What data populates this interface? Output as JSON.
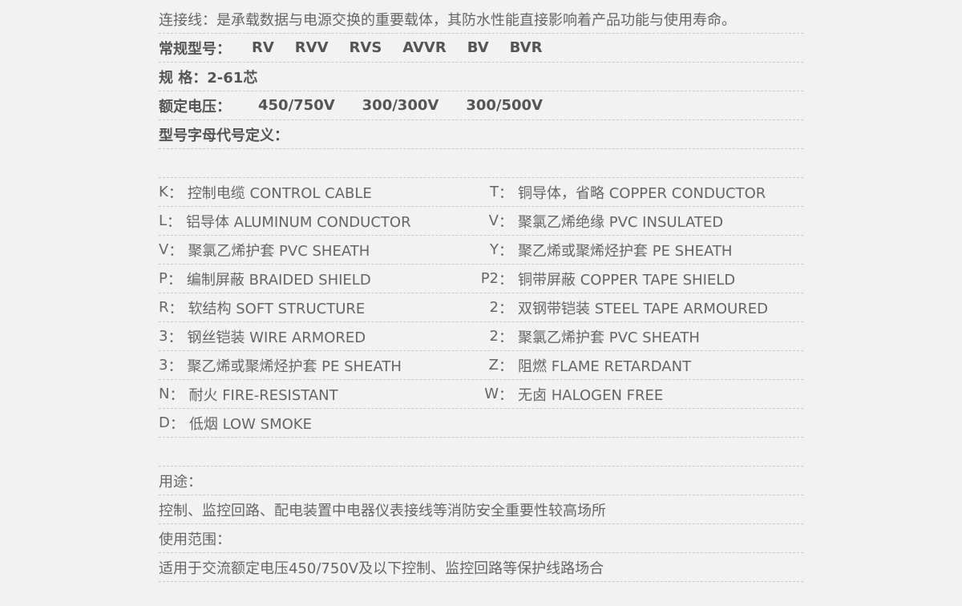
{
  "intro": "连接线：是承载数据与电源交换的重要载体，其防水性能直接影响着产品功能与使用寿命。",
  "models": {
    "label": "常规型号：",
    "items": [
      "RV",
      "RVV",
      "RVS",
      "AVVR",
      "BV",
      "BVR"
    ]
  },
  "spec": {
    "label": "规 格：",
    "value": "2-61芯"
  },
  "voltage": {
    "label": "额定电压：",
    "items": [
      "450/750V",
      "300/300V",
      "300/500V"
    ]
  },
  "definition_title": "型号字母代号定义：",
  "colon": "：",
  "codes": [
    {
      "left": {
        "code": "K",
        "text": "控制电缆 CONTROL CABLE"
      },
      "right": {
        "code": "T",
        "text": "铜导体，省略 COPPER CONDUCTOR"
      }
    },
    {
      "left": {
        "code": "L",
        "text": "铝导体 ALUMINUM CONDUCTOR"
      },
      "right": {
        "code": "V",
        "text": "聚氯乙烯绝缘 PVC INSULATED"
      }
    },
    {
      "left": {
        "code": "V",
        "text": "聚氯乙烯护套 PVC SHEATH"
      },
      "right": {
        "code": "Y",
        "text": "聚乙烯或聚烯烃护套 PE SHEATH"
      }
    },
    {
      "left": {
        "code": "P",
        "text": "编制屏蔽 BRAIDED SHIELD"
      },
      "right": {
        "code": "P2",
        "text": "铜带屏蔽 COPPER TAPE SHIELD"
      }
    },
    {
      "left": {
        "code": "R",
        "text": "软结构 SOFT STRUCTURE"
      },
      "right": {
        "code": "2",
        "text": "双钢带铠装 STEEL TAPE ARMOURED"
      }
    },
    {
      "left": {
        "code": "3",
        "text": "钢丝铠装 WIRE ARMORED"
      },
      "right": {
        "code": "2",
        "text": "聚氯乙烯护套 PVC SHEATH"
      }
    },
    {
      "left": {
        "code": "3",
        "text": "聚乙烯或聚烯烃护套 PE SHEATH"
      },
      "right": {
        "code": "Z",
        "text": "阻燃 FLAME RETARDANT"
      }
    },
    {
      "left": {
        "code": "N",
        "text": "耐火 FIRE-RESISTANT"
      },
      "right": {
        "code": "W",
        "text": "无卤 HALOGEN FREE"
      }
    },
    {
      "left": {
        "code": "D",
        "text": "低烟 LOW SMOKE"
      }
    }
  ],
  "usage": {
    "label": "用途：",
    "value": "控制、监控回路、配电装置中电器仪表接线等消防安全重要性较高场所"
  },
  "scope": {
    "label": "使用范围：",
    "value": "适用于交流额定电压450/750V及以下控制、监控回路等保护线路场合"
  }
}
